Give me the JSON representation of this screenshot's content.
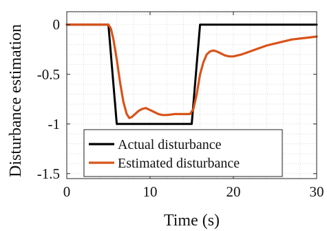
{
  "chart_data": {
    "type": "line",
    "title": "",
    "xlabel": "Time (s)",
    "ylabel": "Disturbance estimation",
    "xlim": [
      0,
      30
    ],
    "ylim": [
      -1.55,
      0.13
    ],
    "x_ticks": [
      0,
      10,
      20,
      30
    ],
    "x_tick_labels": [
      "0",
      "10",
      "20",
      "30"
    ],
    "y_ticks": [
      0,
      -0.5,
      -1,
      -1.5
    ],
    "y_tick_labels": [
      "0",
      "-0.5",
      "-1",
      "-1.5"
    ],
    "grid": "minor-dotted",
    "legend_position": "bottom-left",
    "series": [
      {
        "name": "Actual disturbance",
        "color": "#000000",
        "x": [
          0,
          5,
          6,
          15,
          16,
          30
        ],
        "y": [
          0,
          0,
          -1,
          -1,
          0,
          0
        ]
      },
      {
        "name": "Estimated disturbance",
        "color": "#D95319",
        "x": [
          0,
          5.0,
          5.3,
          5.6,
          6.0,
          6.4,
          6.8,
          7.2,
          7.5,
          7.8,
          8.2,
          8.6,
          9.0,
          9.5,
          10.0,
          10.5,
          11.0,
          11.5,
          12.0,
          13.0,
          14.0,
          14.8,
          15.2,
          15.6,
          16.0,
          16.4,
          16.8,
          17.2,
          17.6,
          18.0,
          18.5,
          19.0,
          19.5,
          20.0,
          21.0,
          22.0,
          23.0,
          24.0,
          25.0,
          26.0,
          27.0,
          28.0,
          29.0,
          30.0
        ],
        "y": [
          0,
          0,
          -0.04,
          -0.15,
          -0.35,
          -0.58,
          -0.78,
          -0.9,
          -0.94,
          -0.93,
          -0.9,
          -0.87,
          -0.85,
          -0.84,
          -0.86,
          -0.88,
          -0.9,
          -0.91,
          -0.91,
          -0.9,
          -0.9,
          -0.9,
          -0.85,
          -0.7,
          -0.5,
          -0.38,
          -0.3,
          -0.27,
          -0.26,
          -0.27,
          -0.29,
          -0.31,
          -0.32,
          -0.32,
          -0.3,
          -0.27,
          -0.24,
          -0.21,
          -0.19,
          -0.17,
          -0.15,
          -0.14,
          -0.13,
          -0.12
        ]
      }
    ]
  }
}
